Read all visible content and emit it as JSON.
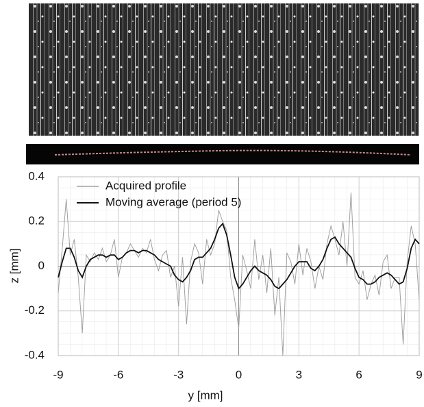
{
  "chart_data": {
    "type": "line",
    "xlabel": "y [mm]",
    "ylabel": "z [mm]",
    "x": [
      -9,
      -8.8,
      -8.6,
      -8.4,
      -8.2,
      -8,
      -7.8,
      -7.6,
      -7.4,
      -7.2,
      -7,
      -6.8,
      -6.6,
      -6.4,
      -6.2,
      -6,
      -5.8,
      -5.6,
      -5.4,
      -5.2,
      -5,
      -4.8,
      -4.6,
      -4.4,
      -4.2,
      -4,
      -3.8,
      -3.6,
      -3.4,
      -3.2,
      -3,
      -2.8,
      -2.6,
      -2.4,
      -2.2,
      -2,
      -1.8,
      -1.6,
      -1.4,
      -1.2,
      -1,
      -0.8,
      -0.6,
      -0.4,
      -0.2,
      0,
      0.2,
      0.4,
      0.6,
      0.8,
      1,
      1.2,
      1.4,
      1.6,
      1.8,
      2,
      2.2,
      2.4,
      2.6,
      2.8,
      3,
      3.2,
      3.4,
      3.6,
      3.8,
      4,
      4.2,
      4.4,
      4.6,
      4.8,
      5,
      5.2,
      5.4,
      5.6,
      5.8,
      6,
      6.2,
      6.4,
      6.6,
      6.8,
      7,
      7.2,
      7.4,
      7.6,
      7.8,
      8,
      8.2,
      8.4,
      8.6,
      8.8,
      9
    ],
    "series": [
      {
        "name": "Acquired profile",
        "color": "#a0a0a0",
        "values": [
          -0.12,
          0.08,
          0.3,
          0.05,
          0.12,
          -0.05,
          -0.3,
          0.05,
          0.02,
          0.06,
          0.03,
          0.08,
          0.02,
          0.05,
          0.12,
          -0.05,
          0.04,
          0.06,
          0.1,
          0.07,
          0.04,
          0.08,
          0.06,
          0.12,
          0.03,
          -0.02,
          0.05,
          0.07,
          -0.05,
          0,
          -0.18,
          0.04,
          -0.26,
          0.02,
          0.1,
          0.06,
          -0.08,
          0.12,
          0.05,
          0.1,
          0.25,
          0.2,
          0.16,
          -0.05,
          -0.15,
          -0.28,
          0.05,
          -0.02,
          -0.1,
          0.12,
          -0.06,
          0.05,
          -0.12,
          0.08,
          -0.22,
          -0.05,
          -0.4,
          0.06,
          0.02,
          -0.08,
          0.1,
          -0.04,
          0.08,
          0.02,
          -0.1,
          0,
          -0.06,
          0.1,
          0.18,
          0.12,
          0.05,
          0.2,
          0,
          0.33,
          -0.05,
          -0.08,
          -0.02,
          -0.15,
          -0.08,
          -0.04,
          -0.13,
          0.02,
          0.05,
          -0.1,
          -0.05,
          -0.05,
          -0.35,
          0.02,
          0.18,
          0.1,
          -0.15
        ]
      },
      {
        "name": "Moving average (period 5)",
        "color": "#111111",
        "values": [
          -0.05,
          0.02,
          0.08,
          0.08,
          0.04,
          -0.02,
          -0.05,
          0,
          0.03,
          0.04,
          0.05,
          0.05,
          0.04,
          0.05,
          0.05,
          0.03,
          0.04,
          0.06,
          0.07,
          0.07,
          0.06,
          0.07,
          0.07,
          0.06,
          0.05,
          0.03,
          0.02,
          0.01,
          0,
          -0.04,
          -0.06,
          -0.07,
          -0.05,
          -0.02,
          0.03,
          0.04,
          0.04,
          0.06,
          0.08,
          0.12,
          0.17,
          0.19,
          0.14,
          0.05,
          -0.05,
          -0.1,
          -0.08,
          -0.05,
          -0.02,
          0,
          -0.02,
          -0.03,
          -0.04,
          -0.06,
          -0.09,
          -0.1,
          -0.08,
          -0.06,
          -0.03,
          0,
          0.02,
          0.02,
          0.02,
          -0.01,
          -0.02,
          0,
          0.03,
          0.08,
          0.12,
          0.13,
          0.1,
          0.08,
          0.06,
          0.04,
          -0.01,
          -0.05,
          -0.06,
          -0.08,
          -0.08,
          -0.07,
          -0.05,
          -0.04,
          -0.03,
          -0.04,
          -0.06,
          -0.08,
          -0.07,
          -0.01,
          0.08,
          0.12,
          0.1
        ]
      }
    ],
    "xlim": [
      -9,
      9
    ],
    "xticks": [
      -9,
      -6,
      -3,
      0,
      3,
      6,
      9
    ],
    "ylim": [
      -0.4,
      0.4
    ],
    "yticks": [
      -0.4,
      -0.2,
      0,
      0.2,
      0.4
    ],
    "grid": true,
    "legend": "upper left"
  }
}
